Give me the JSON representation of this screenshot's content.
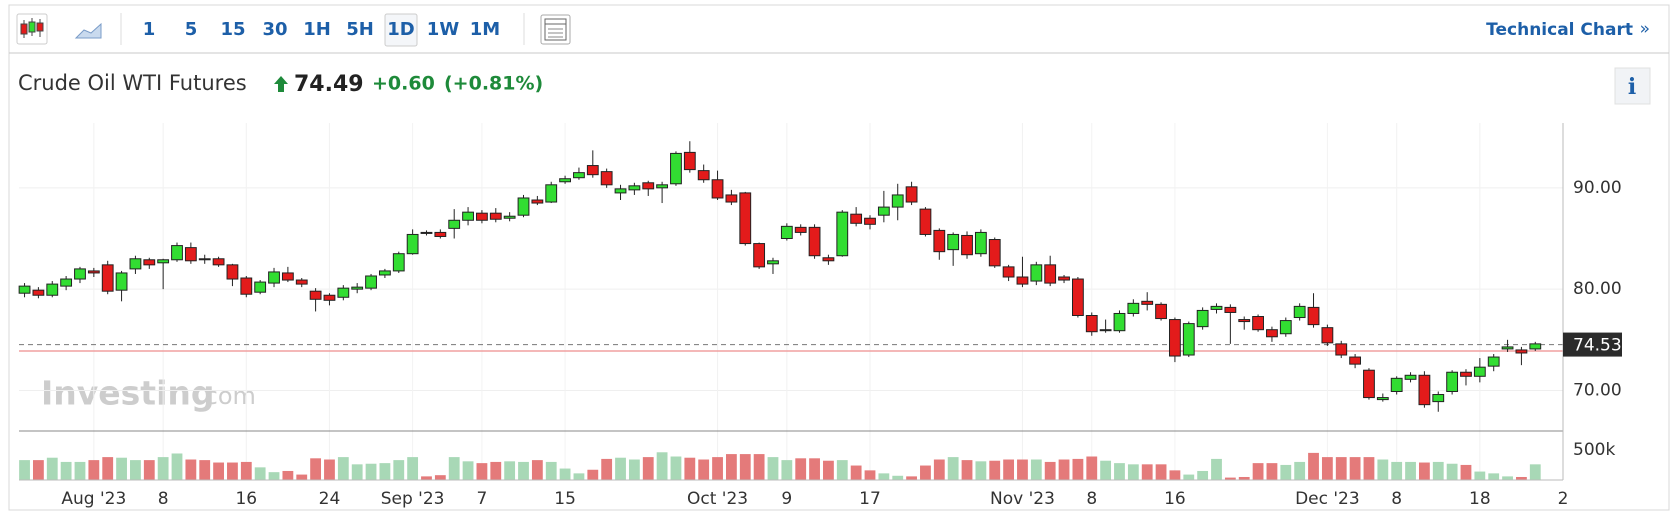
{
  "toolbar": {
    "intervals": [
      "1",
      "5",
      "15",
      "30",
      "1H",
      "5H",
      "1D",
      "1W",
      "1M"
    ],
    "link": "Technical Chart",
    "link_arrow": "»"
  },
  "header": {
    "name": "Crude Oil WTI Futures",
    "price": "74.49",
    "change": "+0.60",
    "change_pct": "(+0.81%)",
    "info": "i"
  },
  "watermark": {
    "brand": "Investing",
    "suffix": ".com"
  },
  "chart_data": {
    "type": "candlestick",
    "up_color": "#32dd32",
    "down_color": "#e31b1b",
    "up_volume_color": "#a8d8b6",
    "down_volume_color": "#e47a7a",
    "ohlc": [
      [
        79.6,
        80.6,
        79.2,
        80.3
      ],
      [
        79.9,
        80.2,
        79.1,
        79.4
      ],
      [
        79.4,
        80.8,
        79.2,
        80.5
      ],
      [
        80.3,
        81.3,
        79.9,
        81.0
      ],
      [
        81.0,
        82.2,
        80.6,
        82.0
      ],
      [
        81.8,
        82.1,
        81.2,
        81.6
      ],
      [
        82.4,
        82.8,
        79.5,
        79.8
      ],
      [
        79.9,
        81.8,
        78.8,
        81.6
      ],
      [
        82.0,
        83.3,
        81.5,
        83.0
      ],
      [
        82.9,
        83.1,
        82.0,
        82.4
      ],
      [
        82.6,
        83.0,
        80.0,
        82.9
      ],
      [
        82.9,
        84.6,
        82.7,
        84.3
      ],
      [
        84.1,
        84.6,
        82.5,
        82.8
      ],
      [
        83.0,
        83.4,
        82.5,
        82.9
      ],
      [
        83.0,
        83.2,
        82.2,
        82.4
      ],
      [
        82.4,
        82.5,
        80.3,
        81.0
      ],
      [
        81.1,
        81.3,
        79.2,
        79.5
      ],
      [
        79.7,
        80.9,
        79.5,
        80.7
      ],
      [
        80.6,
        82.1,
        80.2,
        81.7
      ],
      [
        81.6,
        82.2,
        80.7,
        80.9
      ],
      [
        80.9,
        81.1,
        80.2,
        80.5
      ],
      [
        79.8,
        80.1,
        77.8,
        79.0
      ],
      [
        79.4,
        79.6,
        78.4,
        78.9
      ],
      [
        79.2,
        80.4,
        78.9,
        80.1
      ],
      [
        80.0,
        80.6,
        79.6,
        80.2
      ],
      [
        80.1,
        81.5,
        79.9,
        81.3
      ],
      [
        81.4,
        82.0,
        81.1,
        81.8
      ],
      [
        81.8,
        83.7,
        81.6,
        83.5
      ],
      [
        83.5,
        85.9,
        83.4,
        85.4
      ],
      [
        85.6,
        85.8,
        85.3,
        85.5
      ],
      [
        85.6,
        85.9,
        85.0,
        85.2
      ],
      [
        86.0,
        87.9,
        85.0,
        86.8
      ],
      [
        86.8,
        88.1,
        86.3,
        87.6
      ],
      [
        87.5,
        87.8,
        86.5,
        86.8
      ],
      [
        87.5,
        88.0,
        86.6,
        86.9
      ],
      [
        87.0,
        87.6,
        86.7,
        87.2
      ],
      [
        87.3,
        89.3,
        87.1,
        89.0
      ],
      [
        88.8,
        89.2,
        88.3,
        88.5
      ],
      [
        88.6,
        90.6,
        88.5,
        90.3
      ],
      [
        90.6,
        91.2,
        90.4,
        90.9
      ],
      [
        91.0,
        92.0,
        90.8,
        91.5
      ],
      [
        92.2,
        93.7,
        91.0,
        91.3
      ],
      [
        91.6,
        91.9,
        90.0,
        90.3
      ],
      [
        89.5,
        90.3,
        88.8,
        89.9
      ],
      [
        89.8,
        90.5,
        89.3,
        90.2
      ],
      [
        90.5,
        90.7,
        89.2,
        89.9
      ],
      [
        90.0,
        90.6,
        88.5,
        90.3
      ],
      [
        90.4,
        93.6,
        90.2,
        93.4
      ],
      [
        93.5,
        94.6,
        91.5,
        91.8
      ],
      [
        91.7,
        92.3,
        90.5,
        90.8
      ],
      [
        90.8,
        91.7,
        88.8,
        89.0
      ],
      [
        89.3,
        89.8,
        88.3,
        88.6
      ],
      [
        89.5,
        89.6,
        84.3,
        84.5
      ],
      [
        84.5,
        84.6,
        82.0,
        82.2
      ],
      [
        82.5,
        83.1,
        81.5,
        82.8
      ],
      [
        85.0,
        86.5,
        84.8,
        86.2
      ],
      [
        86.1,
        86.4,
        85.3,
        85.6
      ],
      [
        86.1,
        86.4,
        83.0,
        83.3
      ],
      [
        83.1,
        83.4,
        82.4,
        82.8
      ],
      [
        83.3,
        87.8,
        83.2,
        87.6
      ],
      [
        87.4,
        88.1,
        86.2,
        86.5
      ],
      [
        87.0,
        87.3,
        85.9,
        86.4
      ],
      [
        87.3,
        89.7,
        86.6,
        88.1
      ],
      [
        88.1,
        90.4,
        86.8,
        89.3
      ],
      [
        90.1,
        90.6,
        88.3,
        88.6
      ],
      [
        87.9,
        88.1,
        85.2,
        85.4
      ],
      [
        85.8,
        86.0,
        82.9,
        83.7
      ],
      [
        83.9,
        85.6,
        82.3,
        85.4
      ],
      [
        85.3,
        85.7,
        83.0,
        83.4
      ],
      [
        83.5,
        85.9,
        83.2,
        85.6
      ],
      [
        84.9,
        85.1,
        82.1,
        82.3
      ],
      [
        82.2,
        82.4,
        80.8,
        81.2
      ],
      [
        81.2,
        83.2,
        80.2,
        80.5
      ],
      [
        80.8,
        82.7,
        80.4,
        82.4
      ],
      [
        82.4,
        83.3,
        80.3,
        80.6
      ],
      [
        81.2,
        81.4,
        80.6,
        80.9
      ],
      [
        81.0,
        81.2,
        77.2,
        77.4
      ],
      [
        77.4,
        77.7,
        75.4,
        75.8
      ],
      [
        75.9,
        77.0,
        75.7,
        76.0
      ],
      [
        75.9,
        77.9,
        75.7,
        77.6
      ],
      [
        77.6,
        79.0,
        77.3,
        78.6
      ],
      [
        78.8,
        79.7,
        77.9,
        78.5
      ],
      [
        78.5,
        78.7,
        76.9,
        77.1
      ],
      [
        77.0,
        77.2,
        72.8,
        73.4
      ],
      [
        73.5,
        76.8,
        73.3,
        76.6
      ],
      [
        76.3,
        78.2,
        76.0,
        77.9
      ],
      [
        78.0,
        78.6,
        77.6,
        78.3
      ],
      [
        78.2,
        78.5,
        74.6,
        77.7
      ],
      [
        77.0,
        77.3,
        76.0,
        76.8
      ],
      [
        77.3,
        77.5,
        75.8,
        76.0
      ],
      [
        76.0,
        76.3,
        74.8,
        75.3
      ],
      [
        75.6,
        77.2,
        75.3,
        76.9
      ],
      [
        77.2,
        78.6,
        76.9,
        78.3
      ],
      [
        78.2,
        79.6,
        76.2,
        76.5
      ],
      [
        76.2,
        76.5,
        74.4,
        74.7
      ],
      [
        74.6,
        74.9,
        73.2,
        73.5
      ],
      [
        73.3,
        73.6,
        72.2,
        72.6
      ],
      [
        72.0,
        72.2,
        69.1,
        69.3
      ],
      [
        69.1,
        69.7,
        68.9,
        69.3
      ],
      [
        69.9,
        71.4,
        69.6,
        71.2
      ],
      [
        71.1,
        71.8,
        70.8,
        71.5
      ],
      [
        71.5,
        71.9,
        68.3,
        68.6
      ],
      [
        68.9,
        69.9,
        67.9,
        69.6
      ],
      [
        69.9,
        72.0,
        69.6,
        71.8
      ],
      [
        71.8,
        72.1,
        70.5,
        71.4
      ],
      [
        71.4,
        73.2,
        70.8,
        72.3
      ],
      [
        72.4,
        73.6,
        71.9,
        73.3
      ],
      [
        74.1,
        75.0,
        73.8,
        74.3
      ],
      [
        74.0,
        74.3,
        72.5,
        73.7
      ],
      [
        74.1,
        74.8,
        73.9,
        74.6
      ]
    ],
    "volume": [
      330000,
      330000,
      370000,
      300000,
      300000,
      330000,
      380000,
      370000,
      330000,
      330000,
      380000,
      440000,
      340000,
      330000,
      290000,
      290000,
      300000,
      210000,
      130000,
      150000,
      90000,
      360000,
      340000,
      380000,
      260000,
      270000,
      280000,
      330000,
      380000,
      60000,
      80000,
      380000,
      310000,
      280000,
      300000,
      310000,
      300000,
      330000,
      300000,
      190000,
      110000,
      170000,
      350000,
      370000,
      340000,
      380000,
      460000,
      390000,
      370000,
      340000,
      380000,
      430000,
      430000,
      430000,
      380000,
      330000,
      360000,
      360000,
      320000,
      330000,
      240000,
      160000,
      110000,
      70000,
      60000,
      240000,
      340000,
      380000,
      330000,
      310000,
      320000,
      340000,
      340000,
      340000,
      300000,
      340000,
      350000,
      390000,
      320000,
      280000,
      260000,
      260000,
      260000,
      160000,
      90000,
      150000,
      350000,
      40000,
      50000,
      280000,
      280000,
      250000,
      300000,
      450000,
      380000,
      380000,
      380000,
      380000,
      340000,
      300000,
      300000,
      290000,
      300000,
      270000,
      250000,
      140000,
      110000,
      60000,
      50000,
      260000
    ],
    "xlim": [
      -0.4,
      111
    ],
    "ylim": [
      66,
      96.4
    ],
    "yticks": [
      {
        "value": 70,
        "label": "70.00"
      },
      {
        "value": 80,
        "label": "80.00"
      },
      {
        "value": 90,
        "label": "90.00"
      }
    ],
    "vlim": [
      0,
      780000
    ],
    "vticks": [
      {
        "value": 500000,
        "label": "500k"
      }
    ],
    "xticks": [
      {
        "value": 5,
        "label": "Aug '23"
      },
      {
        "value": 10,
        "label": "8"
      },
      {
        "value": 16,
        "label": "16"
      },
      {
        "value": 22,
        "label": "24"
      },
      {
        "value": 28,
        "label": "Sep '23"
      },
      {
        "value": 33,
        "label": "7"
      },
      {
        "value": 39,
        "label": "15"
      },
      {
        "value": 50,
        "label": "Oct '23"
      },
      {
        "value": 55,
        "label": "9"
      },
      {
        "value": 61,
        "label": "17"
      },
      {
        "value": 72,
        "label": "Nov '23"
      },
      {
        "value": 77,
        "label": "8"
      },
      {
        "value": 83,
        "label": "16"
      },
      {
        "value": 94,
        "label": "Dec '23"
      },
      {
        "value": 99,
        "label": "8"
      },
      {
        "value": 105,
        "label": "18"
      },
      {
        "value": 111,
        "label": "2"
      }
    ],
    "last_price": 74.53,
    "prev_close": 73.89,
    "grid": true
  }
}
